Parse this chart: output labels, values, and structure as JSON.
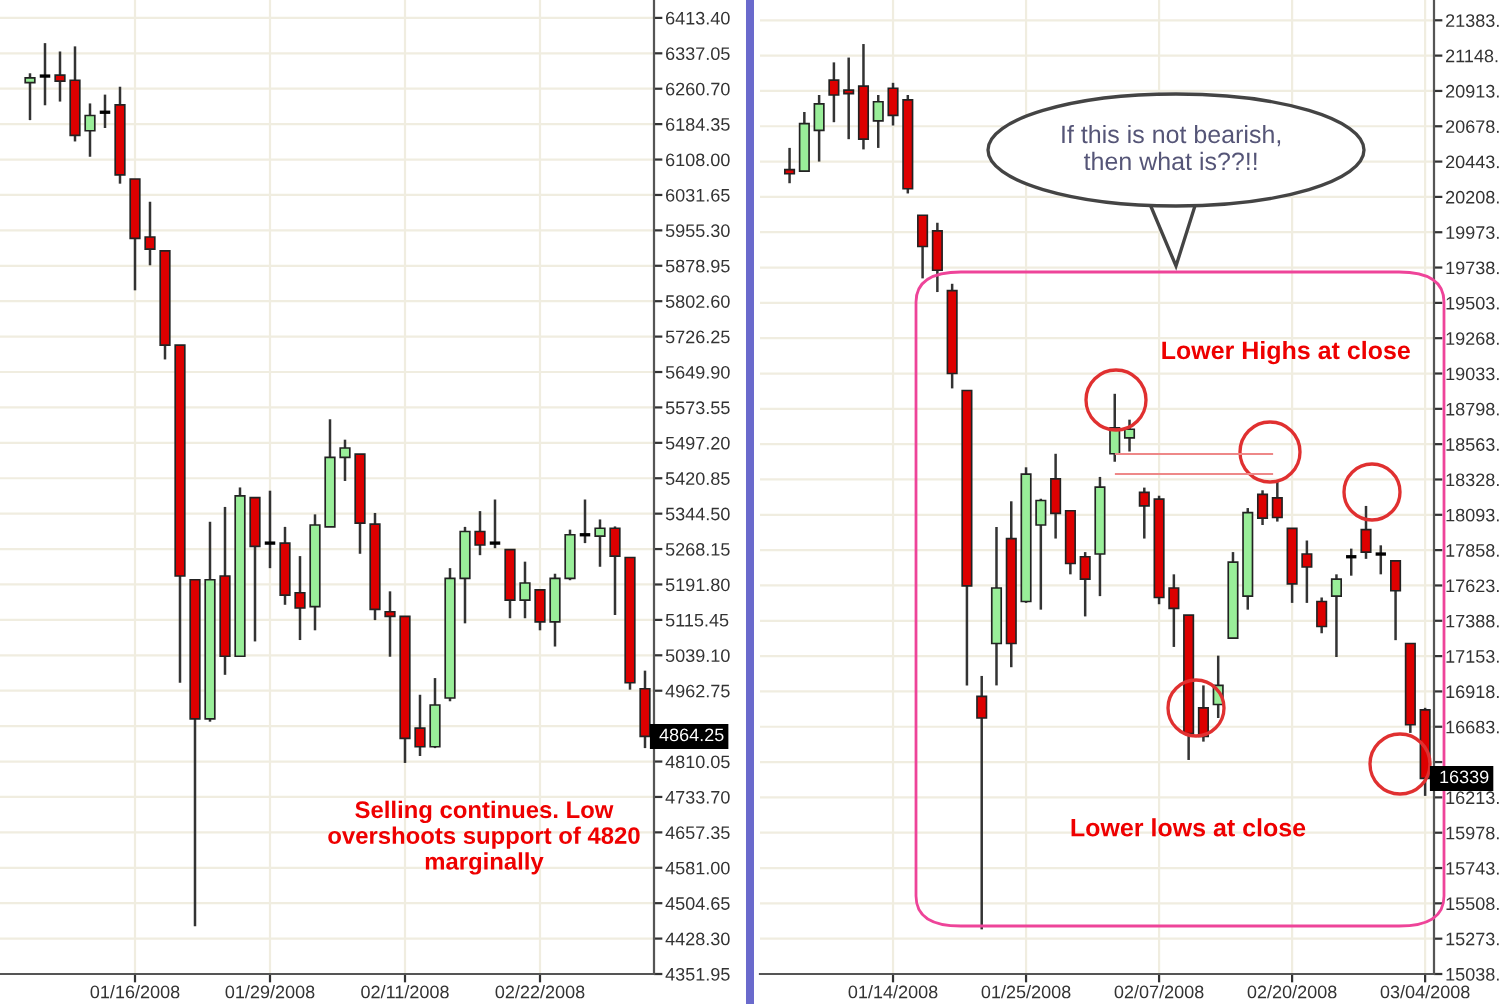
{
  "chart_data": [
    {
      "type": "candlestick",
      "categories": [
        null,
        null,
        null,
        null,
        null,
        null,
        null,
        "01/16/2008",
        null,
        null,
        null,
        null,
        null,
        null,
        null,
        null,
        "01/29/2008",
        null,
        null,
        null,
        null,
        null,
        null,
        null,
        null,
        "02/11/2008",
        null,
        null,
        null,
        null,
        null,
        null,
        null,
        null,
        "02/22/2008",
        null,
        null,
        null,
        null,
        null,
        null,
        null
      ],
      "ohlc": [
        [
          6274,
          6294,
          6193,
          6284
        ],
        [
          6288,
          6359,
          6225,
          6288
        ],
        [
          6290,
          6341,
          6233,
          6277
        ],
        [
          6279,
          6352,
          6147,
          6160
        ],
        [
          6170,
          6229,
          6114,
          6203
        ],
        [
          6210,
          6248,
          6176,
          6210
        ],
        [
          6226,
          6265,
          6056,
          6075
        ],
        [
          6066,
          6066,
          5826,
          5938
        ],
        [
          5941,
          6017,
          5880,
          5915
        ],
        [
          5911,
          5911,
          5677,
          5708
        ],
        [
          5708,
          5708,
          4980,
          5210
        ],
        [
          5202,
          5202,
          4455,
          4902
        ],
        [
          4902,
          5327,
          4896,
          5202
        ],
        [
          5210,
          5359,
          4997,
          5037
        ],
        [
          5037,
          5401,
          5037,
          5383
        ],
        [
          5379,
          5379,
          5069,
          5274
        ],
        [
          5281,
          5394,
          5227,
          5281
        ],
        [
          5281,
          5316,
          5148,
          5169
        ],
        [
          5174,
          5253,
          5072,
          5141
        ],
        [
          5144,
          5343,
          5093,
          5320
        ],
        [
          5316,
          5548,
          5316,
          5466
        ],
        [
          5466,
          5504,
          5415,
          5486
        ],
        [
          5473,
          5473,
          5258,
          5324
        ],
        [
          5322,
          5346,
          5115,
          5138
        ],
        [
          5133,
          5177,
          5036,
          5123
        ],
        [
          5123,
          5123,
          4807,
          4860
        ],
        [
          4882,
          4954,
          4822,
          4842
        ],
        [
          4842,
          4990,
          4839,
          4932
        ],
        [
          4947,
          5227,
          4940,
          5205
        ],
        [
          5205,
          5316,
          5108,
          5306
        ],
        [
          5306,
          5350,
          5255,
          5277
        ],
        [
          5281,
          5375,
          5270,
          5281
        ],
        [
          5267,
          5267,
          5119,
          5158
        ],
        [
          5158,
          5241,
          5119,
          5195
        ],
        [
          5180,
          5180,
          5093,
          5111
        ],
        [
          5111,
          5215,
          5058,
          5205
        ],
        [
          5205,
          5310,
          5201,
          5299
        ],
        [
          5299,
          5375,
          5281,
          5299
        ],
        [
          5296,
          5332,
          5230,
          5313
        ],
        [
          5313,
          5317,
          5126,
          5253
        ],
        [
          5250,
          5250,
          4965,
          4980
        ],
        [
          4967,
          5006,
          4839,
          4864.25
        ]
      ],
      "colors": [
        "#99ee99",
        "#000000",
        "#dd0000",
        "#dd0000",
        "#99ee99",
        "#000000",
        "#dd0000",
        "#dd0000",
        "#dd0000",
        "#dd0000",
        "#dd0000",
        "#dd0000",
        "#99ee99",
        "#dd0000",
        "#99ee99",
        "#dd0000",
        "#000000",
        "#dd0000",
        "#dd0000",
        "#99ee99",
        "#99ee99",
        "#99ee99",
        "#dd0000",
        "#dd0000",
        "#dd0000",
        "#dd0000",
        "#dd0000",
        "#99ee99",
        "#99ee99",
        "#99ee99",
        "#dd0000",
        "#000000",
        "#dd0000",
        "#99ee99",
        "#dd0000",
        "#99ee99",
        "#99ee99",
        "#000000",
        "#99ee99",
        "#dd0000",
        "#dd0000",
        "#dd0000"
      ],
      "ylim": [
        4351.95,
        6452
      ],
      "yticks": [
        {
          "value": 4351.95,
          "label": "4351.95"
        },
        {
          "value": 4428.3,
          "label": "4428.30"
        },
        {
          "value": 4504.65,
          "label": "4504.65"
        },
        {
          "value": 4581.0,
          "label": "4581.00"
        },
        {
          "value": 4657.35,
          "label": "4657.35"
        },
        {
          "value": 4733.7,
          "label": "4733.70"
        },
        {
          "value": 4810.05,
          "label": "4810.05"
        },
        {
          "value": 4886.4,
          "label": null
        },
        {
          "value": 4962.75,
          "label": "4962.75"
        },
        {
          "value": 5039.1,
          "label": "5039.10"
        },
        {
          "value": 5115.45,
          "label": "5115.45"
        },
        {
          "value": 5191.8,
          "label": "5191.80"
        },
        {
          "value": 5268.15,
          "label": "5268.15"
        },
        {
          "value": 5344.5,
          "label": "5344.50"
        },
        {
          "value": 5420.85,
          "label": "5420.85"
        },
        {
          "value": 5497.2,
          "label": "5497.20"
        },
        {
          "value": 5573.55,
          "label": "5573.55"
        },
        {
          "value": 5649.9,
          "label": "5649.90"
        },
        {
          "value": 5726.25,
          "label": "5726.25"
        },
        {
          "value": 5802.6,
          "label": "5802.60"
        },
        {
          "value": 5878.95,
          "label": "5878.95"
        },
        {
          "value": 5955.3,
          "label": "5955.30"
        },
        {
          "value": 6031.65,
          "label": "6031.65"
        },
        {
          "value": 6108.0,
          "label": "6108.00"
        },
        {
          "value": 6184.35,
          "label": "6184.35"
        },
        {
          "value": 6260.7,
          "label": "6260.70"
        },
        {
          "value": 6337.05,
          "label": "6337.05"
        },
        {
          "value": 6413.4,
          "label": "6413.40"
        }
      ],
      "grid": true,
      "annotations": [
        "Selling continues. Low\novershoots support of 4820\nmarginally",
        "4864.25"
      ]
    },
    {
      "type": "candlestick",
      "categories": [
        null,
        null,
        null,
        null,
        null,
        null,
        null,
        "01/14/2008",
        null,
        null,
        null,
        null,
        null,
        null,
        null,
        null,
        "01/25/2008",
        null,
        null,
        null,
        null,
        null,
        null,
        null,
        null,
        "02/07/2008",
        null,
        null,
        null,
        null,
        null,
        null,
        null,
        null,
        "02/20/2008",
        null,
        null,
        null,
        null,
        null,
        null,
        null,
        null,
        "03/04/2008"
      ],
      "ohlc": [
        [
          20389,
          20534,
          20299,
          20362
        ],
        [
          20380,
          20773,
          20380,
          20696
        ],
        [
          20651,
          20886,
          20443,
          20827
        ],
        [
          20985,
          21103,
          20705,
          20886
        ],
        [
          20918,
          21135,
          20592,
          20895
        ],
        [
          20945,
          21225,
          20524,
          20592
        ],
        [
          20714,
          20886,
          20534,
          20841
        ],
        [
          20931,
          20967,
          20683,
          20750
        ],
        [
          20854,
          20886,
          20231,
          20262
        ],
        [
          20086,
          20086,
          19666,
          19878
        ],
        [
          19982,
          20036,
          19575,
          19720
        ],
        [
          19585,
          19630,
          18934,
          19033
        ],
        [
          18920,
          18920,
          16958,
          17620
        ],
        [
          16885,
          17021,
          15335,
          16741
        ],
        [
          17237,
          18012,
          16958,
          17606
        ],
        [
          17935,
          18183,
          17079,
          17237
        ],
        [
          17516,
          18409,
          17507,
          18364
        ],
        [
          18025,
          18200,
          17462,
          18188
        ],
        [
          18332,
          18499,
          17935,
          18102
        ],
        [
          18120,
          18120,
          17697,
          17769
        ],
        [
          17814,
          17845,
          17417,
          17665
        ],
        [
          17832,
          18345,
          17552,
          18277
        ],
        [
          18499,
          18898,
          18446,
          18671
        ],
        [
          18605,
          18726,
          18514,
          18662
        ],
        [
          18242,
          18274,
          17935,
          18152
        ],
        [
          18197,
          18220,
          17498,
          17543
        ],
        [
          17606,
          17697,
          17214,
          17471
        ],
        [
          17426,
          17426,
          16462,
          16638
        ],
        [
          16809,
          16958,
          16584,
          16618
        ],
        [
          16831,
          17156,
          16741,
          16958
        ],
        [
          17273,
          17845,
          17273,
          17778
        ],
        [
          17552,
          18138,
          17462,
          18107
        ],
        [
          18229,
          18256,
          18025,
          18071
        ],
        [
          18206,
          18319,
          18048,
          18075
        ],
        [
          18003,
          18003,
          17507,
          17633
        ],
        [
          17832,
          17922,
          17507,
          17746
        ],
        [
          17516,
          17543,
          17305,
          17350
        ],
        [
          17552,
          17697,
          17147,
          17665
        ],
        [
          17814,
          17868,
          17688,
          17814
        ],
        [
          17994,
          18152,
          17800,
          17845
        ],
        [
          17832,
          17890,
          17697,
          17832
        ],
        [
          17787,
          17787,
          17259,
          17588
        ],
        [
          17237,
          17237,
          16642,
          16696
        ],
        [
          16795,
          16809,
          16223,
          16339
        ]
      ],
      "colors": [
        "#dd0000",
        "#99ee99",
        "#99ee99",
        "#dd0000",
        "#dd0000",
        "#dd0000",
        "#99ee99",
        "#dd0000",
        "#dd0000",
        "#dd0000",
        "#dd0000",
        "#dd0000",
        "#dd0000",
        "#dd0000",
        "#99ee99",
        "#dd0000",
        "#99ee99",
        "#99ee99",
        "#dd0000",
        "#dd0000",
        "#dd0000",
        "#99ee99",
        "#99ee99",
        "#99ee99",
        "#dd0000",
        "#dd0000",
        "#dd0000",
        "#dd0000",
        "#dd0000",
        "#99ee99",
        "#99ee99",
        "#99ee99",
        "#dd0000",
        "#dd0000",
        "#dd0000",
        "#dd0000",
        "#dd0000",
        "#99ee99",
        "#000000",
        "#dd0000",
        "#000000",
        "#dd0000",
        "#dd0000",
        "#dd0000"
      ],
      "ylim": [
        15038,
        21518
      ],
      "yticks": [
        {
          "value": 15038,
          "label": "15038."
        },
        {
          "value": 15273,
          "label": "15273."
        },
        {
          "value": 15508,
          "label": "15508."
        },
        {
          "value": 15743,
          "label": "15743."
        },
        {
          "value": 15978,
          "label": "15978."
        },
        {
          "value": 16213,
          "label": "16213."
        },
        {
          "value": 16448,
          "label": null
        },
        {
          "value": 16683,
          "label": "16683."
        },
        {
          "value": 16918,
          "label": "16918."
        },
        {
          "value": 17153,
          "label": "17153."
        },
        {
          "value": 17388,
          "label": "17388."
        },
        {
          "value": 17623,
          "label": "17623."
        },
        {
          "value": 17858,
          "label": "17858."
        },
        {
          "value": 18093,
          "label": "18093."
        },
        {
          "value": 18328,
          "label": "18328."
        },
        {
          "value": 18563,
          "label": "18563."
        },
        {
          "value": 18798,
          "label": "18798."
        },
        {
          "value": 19033,
          "label": "19033."
        },
        {
          "value": 19268,
          "label": "19268."
        },
        {
          "value": 19503,
          "label": "19503."
        },
        {
          "value": 19738,
          "label": "19738."
        },
        {
          "value": 19973,
          "label": "19973."
        },
        {
          "value": 20208,
          "label": "20208."
        },
        {
          "value": 20443,
          "label": "20443."
        },
        {
          "value": 20678,
          "label": "20678."
        },
        {
          "value": 20913,
          "label": "20913."
        },
        {
          "value": 21148,
          "label": "21148."
        },
        {
          "value": 21383,
          "label": "21383."
        }
      ],
      "grid": true,
      "annotations": [
        "If this is not bearish,\nthen what is??!!",
        "Lower Highs at close",
        "Lower lows at close",
        "16339"
      ]
    }
  ]
}
